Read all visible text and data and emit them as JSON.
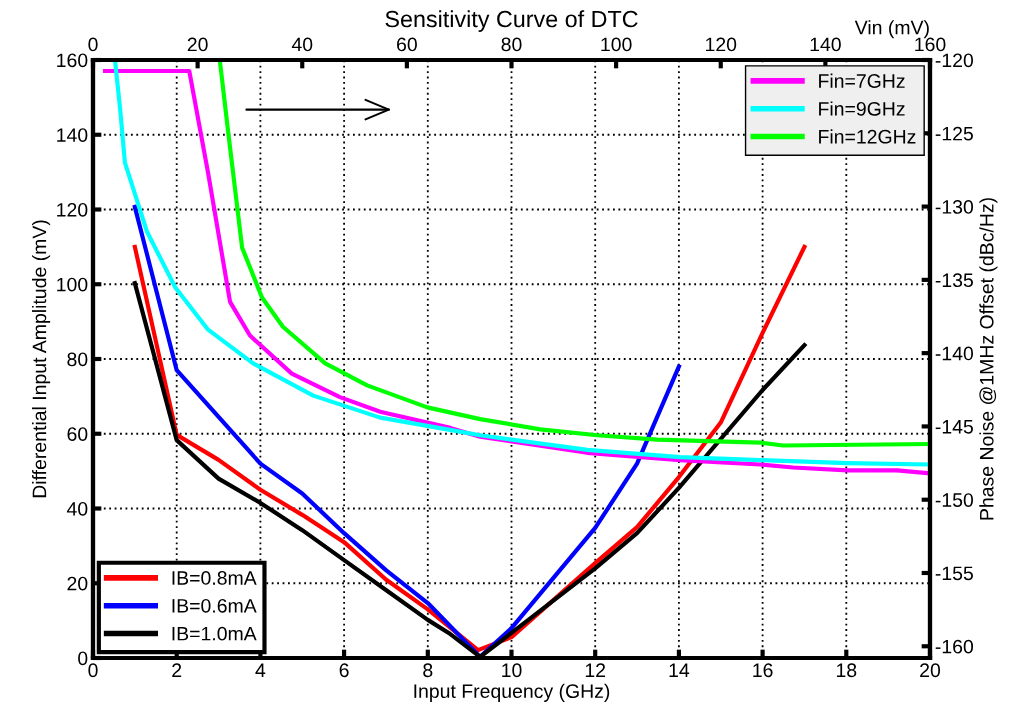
{
  "chart_data": [
    {
      "type": "line",
      "title": "Sensitivity Curve of DTC",
      "xlabel": "Input Frequency (GHz)",
      "ylabel": "Differential Input Amplitude (mV)",
      "xlim": [
        0,
        20
      ],
      "xticks": [
        0,
        2,
        4,
        6,
        8,
        10,
        12,
        14,
        16,
        18,
        20
      ],
      "ylim": [
        0,
        160
      ],
      "yticks": [
        0,
        20,
        40,
        60,
        80,
        100,
        120,
        140,
        160
      ],
      "grid": true,
      "legend": "bottom left",
      "marker": "none",
      "line_style": "solid",
      "series": [
        {
          "name": "IB=0.8mA",
          "color": "#ff0000",
          "x": [
            1,
            2,
            3,
            4,
            5,
            6,
            7,
            8,
            9.2,
            10,
            12,
            13,
            14,
            15,
            16,
            17
          ],
          "values": [
            110,
            59.7,
            53,
            45,
            38.3,
            31,
            21,
            13,
            2.1,
            5.6,
            25.4,
            35,
            48.4,
            63,
            87,
            110
          ]
        },
        {
          "name": "IB=0.6mA",
          "color": "#0000ff",
          "x": [
            1,
            2,
            4,
            5,
            6,
            7,
            8,
            9.25,
            10,
            12,
            13,
            14
          ],
          "values": [
            120.7,
            77,
            52,
            44,
            33.4,
            23.5,
            14.7,
            0.3,
            8,
            34.8,
            52,
            78
          ]
        },
        {
          "name": "IB=1.0mA",
          "color": "#000000",
          "x": [
            1,
            2,
            3,
            4,
            5,
            6,
            7,
            8,
            8.5,
            9.25,
            10,
            12,
            13,
            14,
            16,
            17
          ],
          "values": [
            100.3,
            58.3,
            48,
            41.5,
            34.2,
            26.2,
            18.2,
            10.2,
            6.7,
            0.3,
            6.7,
            24,
            33.4,
            45.5,
            71.7,
            83.7
          ]
        }
      ]
    },
    {
      "type": "line",
      "xlabel": "Vin (mV)",
      "ylabel": "Phase Noise @1MHz Offset (dBc/Hz)",
      "xlim": [
        0,
        160
      ],
      "xticks": [
        0,
        20,
        40,
        60,
        80,
        100,
        120,
        140,
        160
      ],
      "ylim": [
        -160.8,
        -120
      ],
      "yticks": [
        -160,
        -155,
        -150,
        -145,
        -140,
        -135,
        -130,
        -125,
        -120
      ],
      "legend": "top right",
      "marker": "none",
      "line_style": "solid",
      "series": [
        {
          "name": "Fin=7GHz",
          "color": "#ff00ff",
          "x": [
            2.3,
            18.4,
            22.0,
            26.2,
            30.0,
            38.0,
            47.2,
            54.9,
            68.3,
            74.0,
            94.5,
            112.2,
            127.5,
            133.8,
            144.2,
            153.7,
            160
          ],
          "values": [
            -120.75,
            -120.75,
            -127.7,
            -136.5,
            -138.8,
            -141.4,
            -143.0,
            -144.0,
            -145.1,
            -145.7,
            -146.8,
            -147.3,
            -147.6,
            -147.8,
            -148.0,
            -148.0,
            -148.2
          ]
        },
        {
          "name": "Fin=9GHz",
          "color": "#00ffff",
          "x": [
            4.2,
            5.2,
            6.1,
            10.3,
            15.7,
            22.0,
            30.6,
            42.1,
            54.9,
            67.7,
            74.0,
            94.5,
            112.2,
            127.5,
            144.2,
            160
          ],
          "values": [
            -120.0,
            -123.4,
            -127.0,
            -131.7,
            -135.5,
            -138.4,
            -140.7,
            -142.9,
            -144.4,
            -145.2,
            -145.6,
            -146.6,
            -147.1,
            -147.3,
            -147.5,
            -147.6
          ]
        },
        {
          "name": "Fin=12GHz",
          "color": "#00ff00",
          "x": [
            24.3,
            25.8,
            28.5,
            32.3,
            36.3,
            44.4,
            52.4,
            63.9,
            74.0,
            85.5,
            96.4,
            107.8,
            127.5,
            131.9,
            160
          ],
          "values": [
            -120.2,
            -124.8,
            -132.8,
            -136.2,
            -138.2,
            -140.7,
            -142.2,
            -143.7,
            -144.5,
            -145.2,
            -145.6,
            -145.9,
            -146.1,
            -146.3,
            -146.2
          ]
        }
      ]
    }
  ]
}
